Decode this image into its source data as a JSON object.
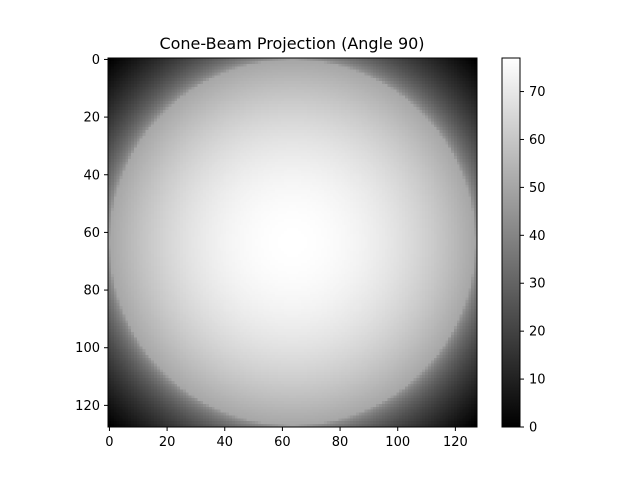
{
  "chart_data": {
    "type": "heatmap",
    "title": "Cone-Beam Projection (Angle 90)",
    "xlabel": "",
    "ylabel": "",
    "colormap": "gray",
    "grid": false,
    "image_shape": [
      128,
      128
    ],
    "xlim": [
      -0.5,
      127.5
    ],
    "ylim": [
      127.5,
      -0.5
    ],
    "x_ticks": [
      0,
      20,
      40,
      60,
      80,
      100,
      120
    ],
    "y_ticks": [
      0,
      20,
      40,
      60,
      80,
      100,
      120
    ],
    "colorbar": {
      "range": [
        0,
        77
      ],
      "ticks": [
        0,
        10,
        20,
        30,
        40,
        50,
        60,
        70
      ]
    },
    "value_model": {
      "center_value": 77,
      "center": [
        63.5,
        63.5
      ],
      "value_at_edge_midpoint": 50,
      "value_at_corner": 0
    }
  }
}
